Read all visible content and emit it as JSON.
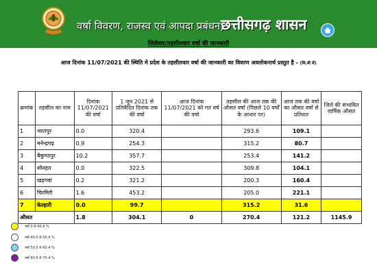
{
  "header": {
    "dept_title": "वर्षा विवरण, राजस्व एवं आपदा प्रबंधन,",
    "state_title": "छत्तीसगढ़ शासन",
    "emblem": "chhattisgarh-state-emblem",
    "home_icon": "home-icon",
    "banner_color": "#2a8a2e"
  },
  "subhead": "जिलेवार/तहसीलवार वर्षा की जानकारी",
  "info_line": "आज दिनांक 11/07/2021 की स्थिति मे प्रदेश के तहसीलवार वर्षा की जानकारी का विवरण अवलोकनार्थ प्रस्तुत है -",
  "info_unit": "(मि.मी में)",
  "table": {
    "headers": [
      "क्रमांक",
      "तहसील का नाम",
      "दिनांक 11/07/2021 की वर्षा",
      "1 जून 2021 से प्रतिवेदित दिनांक तक की वर्षा",
      "आज दिनांक 11/07/2021 को गत वर्ष की वर्षा",
      "तहसील की आज तक की औसत वर्षा (पिछले 10 वर्षों के आधार पर)",
      "आज तक की वर्षा का औसत वर्षा से प्रतिशत",
      "जिले की संभावित वार्षिक औसत"
    ],
    "rows": [
      {
        "no": "1",
        "name": "भरतपुर",
        "today": "0.0",
        "since": "320.4",
        "lastyear": "",
        "avg": "293.6",
        "pct": "109.1",
        "annual": ""
      },
      {
        "no": "2",
        "name": "मनेन्द्रगढ़",
        "today": "0.9",
        "since": "254.3",
        "lastyear": "",
        "avg": "315.2",
        "pct": "80.7",
        "annual": ""
      },
      {
        "no": "3",
        "name": "बैकुण्ठपुर",
        "today": "10.2",
        "since": "357.7",
        "lastyear": "",
        "avg": "253.4",
        "pct": "141.2",
        "annual": ""
      },
      {
        "no": "4",
        "name": "सोनहत",
        "today": "0.0",
        "since": "322.5",
        "lastyear": "",
        "avg": "309.8",
        "pct": "104.1",
        "annual": ""
      },
      {
        "no": "5",
        "name": "खड़गवां",
        "today": "0.2",
        "since": "321.2",
        "lastyear": "",
        "avg": "200.3",
        "pct": "160.4",
        "annual": ""
      },
      {
        "no": "6",
        "name": "चिरमिरी",
        "today": "1.6",
        "since": "453.2",
        "lastyear": "",
        "avg": "205.0",
        "pct": "221.1",
        "annual": ""
      },
      {
        "no": "7",
        "name": "केल्हारी",
        "today": "0.0",
        "since": "99.7",
        "lastyear": "",
        "avg": "315.2",
        "pct": "31.6",
        "annual": "",
        "highlight_color": "#ffff00"
      }
    ],
    "average": {
      "label": "औसत",
      "today": "1.8",
      "since": "304.1",
      "lastyear": "0",
      "avg": "270.4",
      "pct": "121.2",
      "annual": "1145.9"
    }
  },
  "legend": [
    {
      "label": "वर्षा 0 से 40.4 %",
      "color": "#ffff00"
    },
    {
      "label": "वर्षा 40.5 से 50.4 %",
      "color": "#ffffff"
    },
    {
      "label": "वर्षा 50.5 से 60.4 %",
      "color": "#7fd6f0"
    },
    {
      "label": "वर्षा 60.5 से 70.4 %",
      "color": "#7a1f9c"
    }
  ]
}
